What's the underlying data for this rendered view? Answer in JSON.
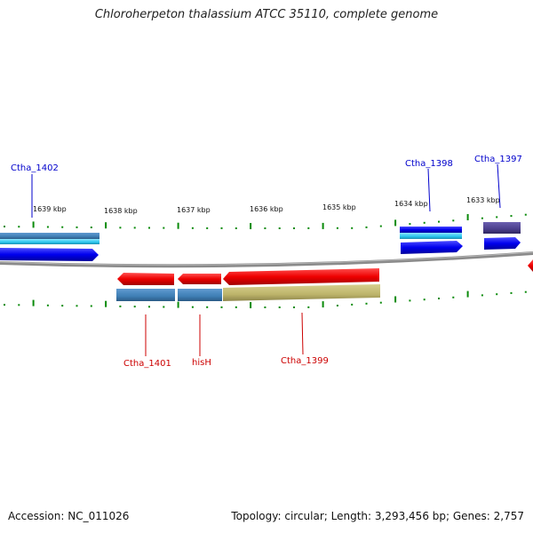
{
  "title": "Chloroherpeton thalassium ATCC 35110, complete genome",
  "footer": {
    "accession": "Accession: NC_011026",
    "topology": "Topology: circular; Length: 3,293,456 bp; Genes: 2,757"
  },
  "scale_labels": [
    "1639 kbp",
    "1638 kbp",
    "1637 kbp",
    "1636 kbp",
    "1635 kbp",
    "1634 kbp",
    "1633 kbp"
  ],
  "genes_top": [
    "Ctha_1402",
    "Ctha_1398",
    "Ctha_1397"
  ],
  "genes_bottom": [
    "Ctha_1401",
    "hisH",
    "Ctha_1399"
  ],
  "colors": {
    "forward_label": "#0000cc",
    "reverse_label": "#cc0000",
    "forward_arrow": "#0000ee",
    "reverse_arrow": "#ee0000",
    "cds_blue": "#3f7fb5",
    "cds_cyan": "#29c6ee",
    "cds_olive": "#bdb46a",
    "cds_purple": "#4b3f8c",
    "backbone": "#808080",
    "ticks": "#008000"
  }
}
